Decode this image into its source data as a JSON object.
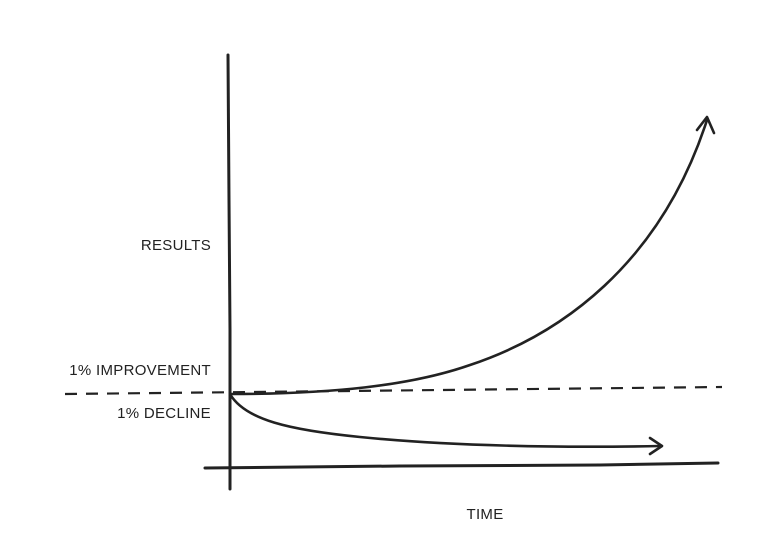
{
  "diagram": {
    "labels": {
      "y_axis": "RESULTS",
      "improvement": "1% IMPROVEMENT",
      "decline": "1% DECLINE",
      "x_axis": "TIME"
    },
    "colors": {
      "ink": "#222222",
      "background": "#ffffff"
    }
  }
}
